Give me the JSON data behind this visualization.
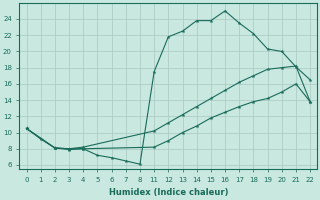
{
  "xlabel": "Humidex (Indice chaleur)",
  "bg_color": "#c8e8e0",
  "grid_color": "#a8c8c0",
  "line_color": "#1a6b5a",
  "xtick_labels": [
    "0",
    "1",
    "2",
    "3",
    "4",
    "5",
    "6",
    "7",
    "8",
    "11",
    "12",
    "13",
    "14",
    "15",
    "16",
    "17",
    "18",
    "19",
    "20",
    "21",
    "22"
  ],
  "xtick_pos": [
    0,
    1,
    2,
    3,
    4,
    5,
    6,
    7,
    8,
    9,
    10,
    11,
    12,
    13,
    14,
    15,
    16,
    17,
    18,
    19,
    20
  ],
  "line1_pos": [
    0,
    1,
    2,
    3,
    4,
    5,
    6,
    7,
    8,
    9,
    10,
    11,
    12,
    13,
    14,
    15,
    16,
    17,
    18,
    19,
    20
  ],
  "line1_y": [
    10.5,
    9.2,
    8.1,
    8.0,
    8.0,
    7.2,
    6.9,
    6.5,
    6.1,
    17.5,
    21.8,
    22.5,
    23.8,
    23.8,
    25.0,
    23.5,
    22.2,
    20.3,
    20.0,
    18.1,
    16.5
  ],
  "line2_pos": [
    0,
    2,
    3,
    4,
    9,
    10,
    11,
    12,
    13,
    14,
    15,
    16,
    17,
    18,
    19,
    20
  ],
  "line2_y": [
    10.5,
    8.1,
    8.0,
    8.2,
    10.2,
    11.2,
    12.2,
    13.2,
    14.2,
    15.2,
    16.2,
    17.0,
    17.8,
    18.0,
    18.2,
    13.8
  ],
  "line3_pos": [
    0,
    2,
    3,
    4,
    9,
    10,
    11,
    12,
    13,
    14,
    15,
    16,
    17,
    18,
    19,
    20
  ],
  "line3_y": [
    10.5,
    8.1,
    7.9,
    8.0,
    8.2,
    9.0,
    10.0,
    10.8,
    11.8,
    12.5,
    13.2,
    13.8,
    14.2,
    15.0,
    16.0,
    13.8
  ],
  "xlim": [
    -0.5,
    20.5
  ],
  "ylim": [
    5.5,
    26.0
  ],
  "yticks": [
    6,
    8,
    10,
    12,
    14,
    16,
    18,
    20,
    22,
    24
  ]
}
